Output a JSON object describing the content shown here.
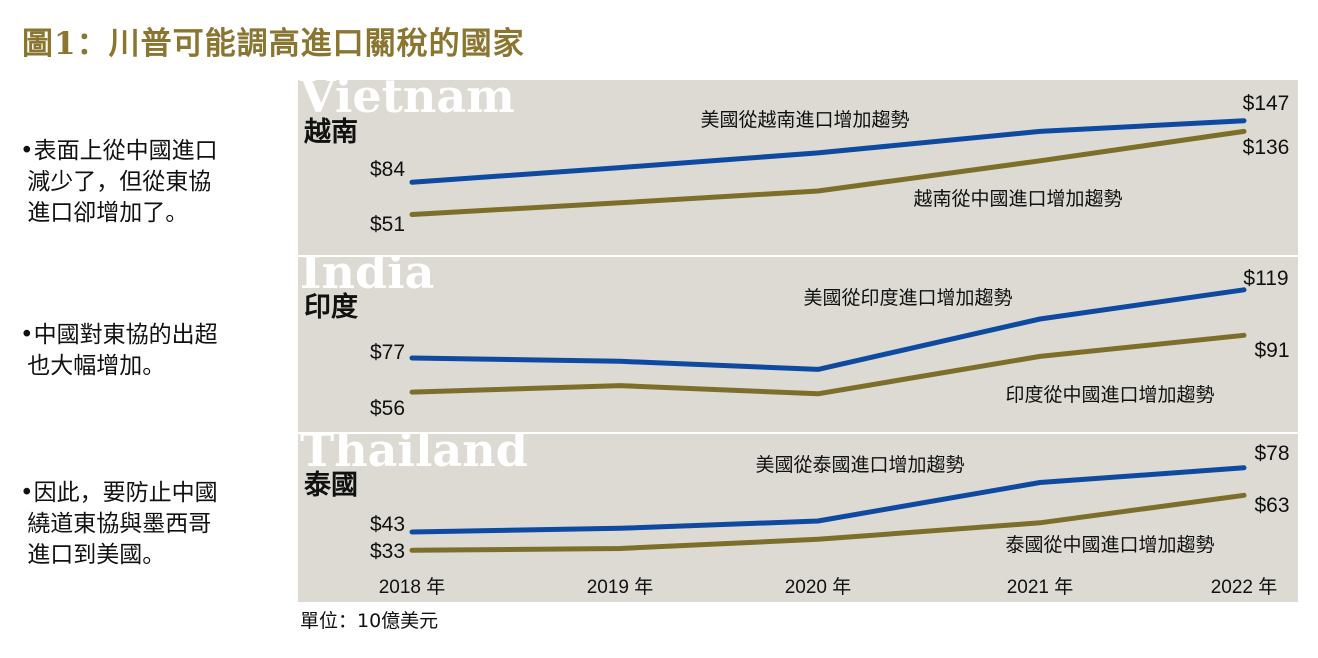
{
  "title": "圖1：川普可能調高進口關稅的國家",
  "bullets": [
    "•表面上從中國進口\n 減少了，但從東協\n 進口卻增加了。",
    "•中國對東協的出超\n 也大幅增加。",
    "•因此，要防止中國\n 繞道東協與墨西哥\n 進口到美國。"
  ],
  "unit": "單位：10億美元",
  "colors": {
    "us": "#0e4aa0",
    "china": "#7d6f2a",
    "panel": "#dcdad3",
    "title": "#8a7630"
  },
  "chart_data": {
    "type": "line",
    "x_labels": [
      "2018 年",
      "2019 年",
      "2020 年",
      "2021 年",
      "2022 年"
    ],
    "panels": [
      {
        "name": "越南",
        "watermark": "Vietnam",
        "ylim": [
          30,
          160
        ],
        "series": [
          {
            "name": "美國從越南進口增加趨勢",
            "key": "us",
            "values": [
              84,
              99,
              114,
              136,
              147
            ],
            "start_label": "$84",
            "end_label": "$147"
          },
          {
            "name": "越南從中國進口增加趨勢",
            "key": "china",
            "values": [
              51,
              63,
              75,
              106,
              136
            ],
            "start_label": "$51",
            "end_label": "$136"
          }
        ]
      },
      {
        "name": "印度",
        "watermark": "India",
        "ylim": [
          45,
          125
        ],
        "series": [
          {
            "name": "美國從印度進口增加趨勢",
            "key": "us",
            "values": [
              77,
              75,
              70,
              101,
              119
            ],
            "start_label": "$77",
            "end_label": "$119"
          },
          {
            "name": "印度從中國進口增加趨勢",
            "key": "china",
            "values": [
              56,
              60,
              55,
              78,
              91
            ],
            "start_label": "$56",
            "end_label": "$91"
          }
        ]
      },
      {
        "name": "泰國",
        "watermark": "Thailand",
        "ylim": [
          25,
          85
        ],
        "series": [
          {
            "name": "美國從泰國進口增加趨勢",
            "key": "us",
            "values": [
              43,
              45,
              49,
              70,
              78
            ],
            "start_label": "$43",
            "end_label": "$78"
          },
          {
            "name": "泰國從中國進口增加趨勢",
            "key": "china",
            "values": [
              33,
              34,
              39,
              48,
              63
            ],
            "start_label": "$33",
            "end_label": "$63"
          }
        ]
      }
    ]
  }
}
